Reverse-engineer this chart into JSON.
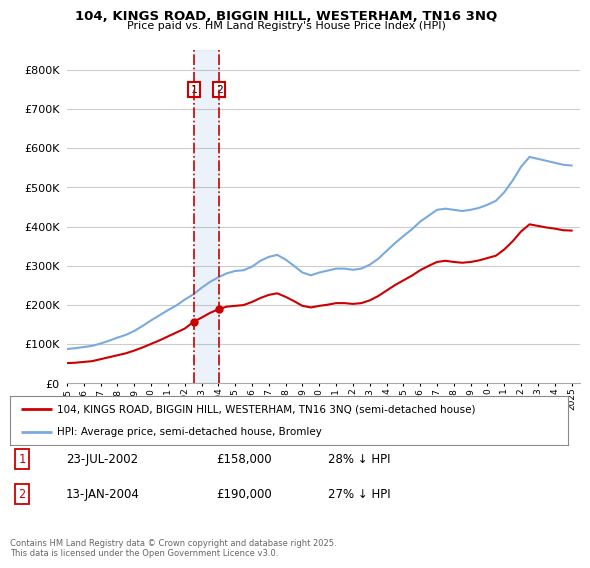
{
  "title": "104, KINGS ROAD, BIGGIN HILL, WESTERHAM, TN16 3NQ",
  "subtitle": "Price paid vs. HM Land Registry's House Price Index (HPI)",
  "legend_line1": "104, KINGS ROAD, BIGGIN HILL, WESTERHAM, TN16 3NQ (semi-detached house)",
  "legend_line2": "HPI: Average price, semi-detached house, Bromley",
  "transaction1_date": "23-JUL-2002",
  "transaction1_price": "£158,000",
  "transaction1_hpi": "28% ↓ HPI",
  "transaction2_date": "13-JAN-2004",
  "transaction2_price": "£190,000",
  "transaction2_hpi": "27% ↓ HPI",
  "footer": "Contains HM Land Registry data © Crown copyright and database right 2025.\nThis data is licensed under the Open Government Licence v3.0.",
  "transaction1_x": 2002.55,
  "transaction2_x": 2004.04,
  "transaction1_y": 158000,
  "transaction2_y": 190000,
  "red_color": "#cc0000",
  "blue_color": "#7aaadd",
  "vline_color": "#cc0000",
  "fill_color": "#ddeeff",
  "background_color": "#ffffff",
  "grid_color": "#cccccc",
  "ylim": [
    0,
    850000
  ],
  "yticks": [
    0,
    100000,
    200000,
    300000,
    400000,
    500000,
    600000,
    700000,
    800000
  ],
  "xmin": 1995,
  "xmax": 2025.5,
  "years_hpi": [
    1995.0,
    1995.5,
    1996.0,
    1996.5,
    1997.0,
    1997.5,
    1998.0,
    1998.5,
    1999.0,
    1999.5,
    2000.0,
    2000.5,
    2001.0,
    2001.5,
    2002.0,
    2002.5,
    2003.0,
    2003.5,
    2004.0,
    2004.5,
    2005.0,
    2005.5,
    2006.0,
    2006.5,
    2007.0,
    2007.5,
    2008.0,
    2008.5,
    2009.0,
    2009.5,
    2010.0,
    2010.5,
    2011.0,
    2011.5,
    2012.0,
    2012.5,
    2013.0,
    2013.5,
    2014.0,
    2014.5,
    2015.0,
    2015.5,
    2016.0,
    2016.5,
    2017.0,
    2017.5,
    2018.0,
    2018.5,
    2019.0,
    2019.5,
    2020.0,
    2020.5,
    2021.0,
    2021.5,
    2022.0,
    2022.5,
    2023.0,
    2023.5,
    2024.0,
    2024.5,
    2025.0
  ],
  "hpi_values": [
    88000,
    90000,
    93000,
    96000,
    102000,
    109000,
    117000,
    124000,
    134000,
    147000,
    161000,
    174000,
    187000,
    199000,
    214000,
    227000,
    244000,
    259000,
    271000,
    281000,
    287000,
    289000,
    298000,
    313000,
    323000,
    328000,
    316000,
    300000,
    283000,
    276000,
    283000,
    288000,
    293000,
    293000,
    290000,
    293000,
    303000,
    318000,
    338000,
    358000,
    376000,
    393000,
    413000,
    428000,
    443000,
    446000,
    443000,
    440000,
    443000,
    448000,
    456000,
    466000,
    488000,
    518000,
    553000,
    578000,
    573000,
    568000,
    563000,
    558000,
    556000
  ],
  "years_red": [
    1995.0,
    1995.5,
    1996.0,
    1996.5,
    1997.0,
    1997.5,
    1998.0,
    1998.5,
    1999.0,
    1999.5,
    2000.0,
    2000.5,
    2001.0,
    2001.5,
    2002.0,
    2002.55,
    2003.0,
    2003.5,
    2004.04,
    2004.5,
    2005.0,
    2005.5,
    2006.0,
    2006.5,
    2007.0,
    2007.5,
    2008.0,
    2008.5,
    2009.0,
    2009.5,
    2010.0,
    2010.5,
    2011.0,
    2011.5,
    2012.0,
    2012.5,
    2013.0,
    2013.5,
    2014.0,
    2014.5,
    2015.0,
    2015.5,
    2016.0,
    2016.5,
    2017.0,
    2017.5,
    2018.0,
    2018.5,
    2019.0,
    2019.5,
    2020.0,
    2020.5,
    2021.0,
    2021.5,
    2022.0,
    2022.5,
    2023.0,
    2023.5,
    2024.0,
    2024.5,
    2025.0
  ],
  "red_values": [
    52000,
    53000,
    55000,
    57000,
    62000,
    67000,
    72000,
    77000,
    84000,
    92000,
    101000,
    110000,
    120000,
    130000,
    140000,
    158000,
    168000,
    180000,
    190000,
    196000,
    198000,
    200000,
    208000,
    218000,
    226000,
    230000,
    221000,
    210000,
    198000,
    194000,
    198000,
    201000,
    205000,
    205000,
    203000,
    205000,
    212000,
    223000,
    237000,
    251000,
    263000,
    275000,
    289000,
    300000,
    310000,
    313000,
    310000,
    308000,
    310000,
    314000,
    320000,
    326000,
    342000,
    363000,
    388000,
    406000,
    402000,
    398000,
    395000,
    391000,
    390000
  ]
}
